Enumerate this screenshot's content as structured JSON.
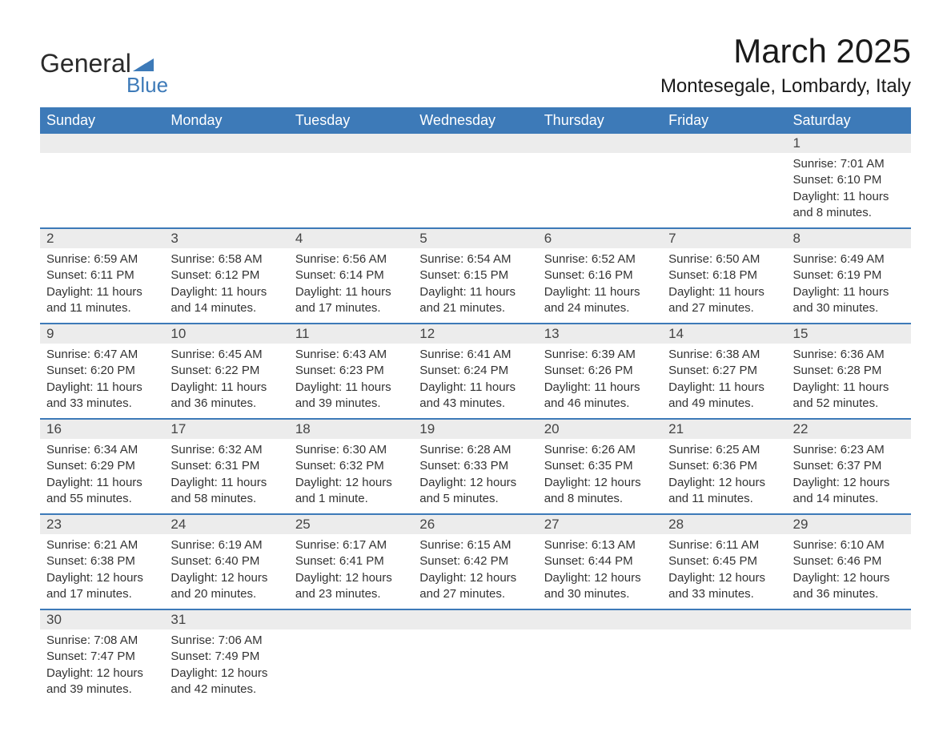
{
  "logo": {
    "main": "General",
    "sub": "Blue",
    "accent_color": "#3d7ab8"
  },
  "title": "March 2025",
  "location": "Montesegale, Lombardy, Italy",
  "header_bg": "#3d7ab8",
  "daynum_bg": "#ececec",
  "text_color": "#333333",
  "dow": [
    "Sunday",
    "Monday",
    "Tuesday",
    "Wednesday",
    "Thursday",
    "Friday",
    "Saturday"
  ],
  "weeks": [
    [
      null,
      null,
      null,
      null,
      null,
      null,
      {
        "n": "1",
        "sr": "7:01 AM",
        "ss": "6:10 PM",
        "dl": "11 hours and 8 minutes."
      }
    ],
    [
      {
        "n": "2",
        "sr": "6:59 AM",
        "ss": "6:11 PM",
        "dl": "11 hours and 11 minutes."
      },
      {
        "n": "3",
        "sr": "6:58 AM",
        "ss": "6:12 PM",
        "dl": "11 hours and 14 minutes."
      },
      {
        "n": "4",
        "sr": "6:56 AM",
        "ss": "6:14 PM",
        "dl": "11 hours and 17 minutes."
      },
      {
        "n": "5",
        "sr": "6:54 AM",
        "ss": "6:15 PM",
        "dl": "11 hours and 21 minutes."
      },
      {
        "n": "6",
        "sr": "6:52 AM",
        "ss": "6:16 PM",
        "dl": "11 hours and 24 minutes."
      },
      {
        "n": "7",
        "sr": "6:50 AM",
        "ss": "6:18 PM",
        "dl": "11 hours and 27 minutes."
      },
      {
        "n": "8",
        "sr": "6:49 AM",
        "ss": "6:19 PM",
        "dl": "11 hours and 30 minutes."
      }
    ],
    [
      {
        "n": "9",
        "sr": "6:47 AM",
        "ss": "6:20 PM",
        "dl": "11 hours and 33 minutes."
      },
      {
        "n": "10",
        "sr": "6:45 AM",
        "ss": "6:22 PM",
        "dl": "11 hours and 36 minutes."
      },
      {
        "n": "11",
        "sr": "6:43 AM",
        "ss": "6:23 PM",
        "dl": "11 hours and 39 minutes."
      },
      {
        "n": "12",
        "sr": "6:41 AM",
        "ss": "6:24 PM",
        "dl": "11 hours and 43 minutes."
      },
      {
        "n": "13",
        "sr": "6:39 AM",
        "ss": "6:26 PM",
        "dl": "11 hours and 46 minutes."
      },
      {
        "n": "14",
        "sr": "6:38 AM",
        "ss": "6:27 PM",
        "dl": "11 hours and 49 minutes."
      },
      {
        "n": "15",
        "sr": "6:36 AM",
        "ss": "6:28 PM",
        "dl": "11 hours and 52 minutes."
      }
    ],
    [
      {
        "n": "16",
        "sr": "6:34 AM",
        "ss": "6:29 PM",
        "dl": "11 hours and 55 minutes."
      },
      {
        "n": "17",
        "sr": "6:32 AM",
        "ss": "6:31 PM",
        "dl": "11 hours and 58 minutes."
      },
      {
        "n": "18",
        "sr": "6:30 AM",
        "ss": "6:32 PM",
        "dl": "12 hours and 1 minute."
      },
      {
        "n": "19",
        "sr": "6:28 AM",
        "ss": "6:33 PM",
        "dl": "12 hours and 5 minutes."
      },
      {
        "n": "20",
        "sr": "6:26 AM",
        "ss": "6:35 PM",
        "dl": "12 hours and 8 minutes."
      },
      {
        "n": "21",
        "sr": "6:25 AM",
        "ss": "6:36 PM",
        "dl": "12 hours and 11 minutes."
      },
      {
        "n": "22",
        "sr": "6:23 AM",
        "ss": "6:37 PM",
        "dl": "12 hours and 14 minutes."
      }
    ],
    [
      {
        "n": "23",
        "sr": "6:21 AM",
        "ss": "6:38 PM",
        "dl": "12 hours and 17 minutes."
      },
      {
        "n": "24",
        "sr": "6:19 AM",
        "ss": "6:40 PM",
        "dl": "12 hours and 20 minutes."
      },
      {
        "n": "25",
        "sr": "6:17 AM",
        "ss": "6:41 PM",
        "dl": "12 hours and 23 minutes."
      },
      {
        "n": "26",
        "sr": "6:15 AM",
        "ss": "6:42 PM",
        "dl": "12 hours and 27 minutes."
      },
      {
        "n": "27",
        "sr": "6:13 AM",
        "ss": "6:44 PM",
        "dl": "12 hours and 30 minutes."
      },
      {
        "n": "28",
        "sr": "6:11 AM",
        "ss": "6:45 PM",
        "dl": "12 hours and 33 minutes."
      },
      {
        "n": "29",
        "sr": "6:10 AM",
        "ss": "6:46 PM",
        "dl": "12 hours and 36 minutes."
      }
    ],
    [
      {
        "n": "30",
        "sr": "7:08 AM",
        "ss": "7:47 PM",
        "dl": "12 hours and 39 minutes."
      },
      {
        "n": "31",
        "sr": "7:06 AM",
        "ss": "7:49 PM",
        "dl": "12 hours and 42 minutes."
      },
      null,
      null,
      null,
      null,
      null
    ]
  ],
  "labels": {
    "sunrise": "Sunrise: ",
    "sunset": "Sunset: ",
    "daylight": "Daylight: "
  }
}
